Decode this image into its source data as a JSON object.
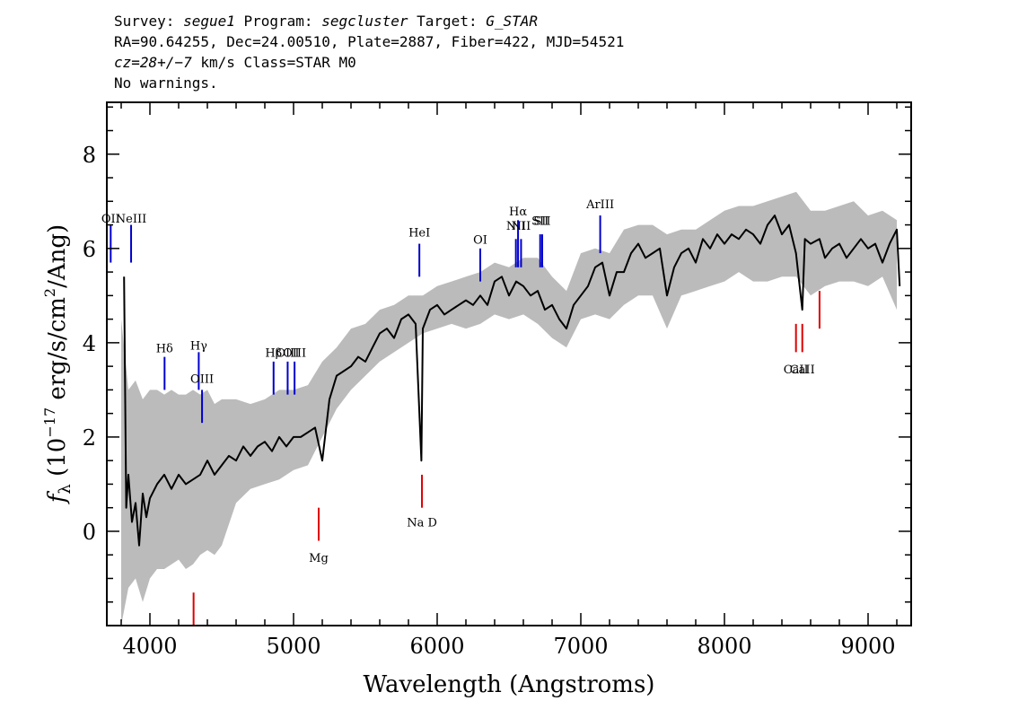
{
  "header": {
    "line1": {
      "survey_label": "Survey: ",
      "survey": "segue1",
      "program_label": " Program: ",
      "program": "segcluster",
      "target_label": " Target: ",
      "target": "G_STAR"
    },
    "line2": "RA=90.64255, Dec=24.00510, Plate=2887, Fiber=422, MJD=54521",
    "line3": {
      "cz": "cz=28+/−7",
      "cz_unit": " km/s Class=STAR M0"
    },
    "line4": "No warnings."
  },
  "chart_data": {
    "type": "line",
    "title": "",
    "xlabel": "Wavelength (Angstroms)",
    "ylabel": "fλ (10^-17 erg/s/cm^2/Ang)",
    "ylabel_parts": {
      "f": "f",
      "sub": "λ",
      "pre": " (10",
      "exp1": "−17",
      "mid": " erg/s/cm",
      "exp2": "2",
      "post": "/Ang)"
    },
    "xlim": [
      3700,
      9300
    ],
    "ylim": [
      -2.0,
      9.1
    ],
    "xticks": [
      4000,
      5000,
      6000,
      7000,
      8000,
      9000
    ],
    "yticks": [
      0,
      2,
      4,
      6,
      8
    ],
    "series": [
      {
        "role": "error-band",
        "color": "#bbbbbb",
        "x": [
          3800,
          3850,
          3900,
          3950,
          4000,
          4050,
          4100,
          4150,
          4200,
          4250,
          4300,
          4350,
          4400,
          4450,
          4500,
          4600,
          4700,
          4800,
          4900,
          5000,
          5100,
          5200,
          5300,
          5400,
          5500,
          5600,
          5700,
          5800,
          5900,
          6000,
          6100,
          6200,
          6300,
          6400,
          6500,
          6600,
          6700,
          6800,
          6900,
          7000,
          7100,
          7200,
          7300,
          7400,
          7500,
          7600,
          7700,
          7800,
          7900,
          8000,
          8100,
          8200,
          8300,
          8400,
          8500,
          8600,
          8700,
          8800,
          8900,
          9000,
          9100,
          9200
        ],
        "upper": [
          4.5,
          3.0,
          3.2,
          2.8,
          3.0,
          3.0,
          2.9,
          3.0,
          2.9,
          2.9,
          3.0,
          2.9,
          3.0,
          2.7,
          2.8,
          2.8,
          2.7,
          2.8,
          3.0,
          3.0,
          3.1,
          3.6,
          3.9,
          4.3,
          4.4,
          4.7,
          4.8,
          5.0,
          5.0,
          5.2,
          5.3,
          5.4,
          5.5,
          5.7,
          5.6,
          5.8,
          5.8,
          5.4,
          5.1,
          5.9,
          6.0,
          5.9,
          6.4,
          6.5,
          6.5,
          6.3,
          6.4,
          6.4,
          6.6,
          6.8,
          6.9,
          6.9,
          7.0,
          7.1,
          7.2,
          6.8,
          6.8,
          6.9,
          7.0,
          6.7,
          6.8,
          6.6
        ],
        "lower": [
          -2.0,
          -1.2,
          -1.0,
          -1.5,
          -1.0,
          -0.8,
          -0.8,
          -0.7,
          -0.6,
          -0.8,
          -0.7,
          -0.5,
          -0.4,
          -0.5,
          -0.3,
          0.6,
          0.9,
          1.0,
          1.1,
          1.3,
          1.4,
          2.0,
          2.6,
          3.0,
          3.3,
          3.6,
          3.8,
          4.0,
          4.2,
          4.3,
          4.4,
          4.3,
          4.4,
          4.6,
          4.5,
          4.6,
          4.4,
          4.1,
          3.9,
          4.5,
          4.6,
          4.5,
          4.8,
          5.0,
          5.0,
          4.3,
          5.0,
          5.1,
          5.2,
          5.3,
          5.5,
          5.3,
          5.3,
          5.4,
          5.4,
          5.0,
          5.2,
          5.3,
          5.3,
          5.2,
          5.4,
          4.7
        ]
      },
      {
        "role": "flux",
        "color": "#000000",
        "x": [
          3820,
          3835,
          3850,
          3875,
          3900,
          3925,
          3950,
          3975,
          4000,
          4050,
          4100,
          4150,
          4200,
          4250,
          4300,
          4350,
          4400,
          4450,
          4500,
          4550,
          4600,
          4650,
          4700,
          4750,
          4800,
          4850,
          4900,
          4950,
          5000,
          5050,
          5100,
          5150,
          5200,
          5250,
          5300,
          5350,
          5400,
          5450,
          5500,
          5550,
          5600,
          5650,
          5700,
          5750,
          5800,
          5850,
          5890,
          5900,
          5950,
          6000,
          6050,
          6100,
          6150,
          6200,
          6250,
          6300,
          6350,
          6400,
          6450,
          6500,
          6550,
          6600,
          6650,
          6700,
          6750,
          6800,
          6850,
          6900,
          6950,
          7000,
          7050,
          7100,
          7150,
          7200,
          7250,
          7300,
          7350,
          7400,
          7450,
          7500,
          7550,
          7600,
          7650,
          7700,
          7750,
          7800,
          7850,
          7900,
          7950,
          8000,
          8050,
          8100,
          8150,
          8200,
          8250,
          8300,
          8350,
          8400,
          8450,
          8498,
          8542,
          8560,
          8600,
          8662,
          8700,
          8750,
          8800,
          8850,
          8900,
          8950,
          9000,
          9050,
          9100,
          9150,
          9200,
          9220
        ],
        "y": [
          5.4,
          0.5,
          1.2,
          0.2,
          0.6,
          -0.3,
          0.8,
          0.3,
          0.7,
          1.0,
          1.2,
          0.9,
          1.2,
          1.0,
          1.1,
          1.2,
          1.5,
          1.2,
          1.4,
          1.6,
          1.5,
          1.8,
          1.6,
          1.8,
          1.9,
          1.7,
          2.0,
          1.8,
          2.0,
          2.0,
          2.1,
          2.2,
          1.5,
          2.8,
          3.3,
          3.4,
          3.5,
          3.7,
          3.6,
          3.9,
          4.2,
          4.3,
          4.1,
          4.5,
          4.6,
          4.4,
          1.5,
          4.3,
          4.7,
          4.8,
          4.6,
          4.7,
          4.8,
          4.9,
          4.8,
          5.0,
          4.8,
          5.3,
          5.4,
          5.0,
          5.3,
          5.2,
          5.0,
          5.1,
          4.7,
          4.8,
          4.5,
          4.3,
          4.8,
          5.0,
          5.2,
          5.6,
          5.7,
          5.0,
          5.5,
          5.5,
          5.9,
          6.1,
          5.8,
          5.9,
          6.0,
          5.0,
          5.6,
          5.9,
          6.0,
          5.7,
          6.2,
          6.0,
          6.3,
          6.1,
          6.3,
          6.2,
          6.4,
          6.3,
          6.1,
          6.5,
          6.7,
          6.3,
          6.5,
          5.9,
          4.7,
          6.2,
          6.1,
          6.2,
          5.8,
          6.0,
          6.1,
          5.8,
          6.0,
          6.2,
          6.0,
          6.1,
          5.7,
          6.1,
          6.4,
          5.2
        ]
      }
    ],
    "emission_lines": [
      {
        "label": "OII",
        "x": 3727,
        "y0": 5.7,
        "y1": 6.5,
        "ly": 6.55,
        "color": "#0000cc"
      },
      {
        "label": "NeIII",
        "x": 3869,
        "y0": 5.7,
        "y1": 6.5,
        "ly": 6.55,
        "color": "#0000cc"
      },
      {
        "label": "Hδ",
        "x": 4102,
        "y0": 3.0,
        "y1": 3.7,
        "ly": 3.8,
        "color": "#0000cc"
      },
      {
        "label": "Hγ",
        "x": 4340,
        "y0": 3.0,
        "y1": 3.8,
        "ly": 3.85,
        "color": "#0000cc"
      },
      {
        "label": "OIII",
        "x": 4363,
        "y0": 2.3,
        "y1": 3.0,
        "ly": 3.15,
        "color": "#0000cc"
      },
      {
        "label": "Hβ",
        "x": 4861,
        "y0": 2.9,
        "y1": 3.6,
        "ly": 3.7,
        "color": "#0000cc"
      },
      {
        "label": "OIII",
        "x": 4959,
        "y0": 2.9,
        "y1": 3.6,
        "ly": 3.7,
        "color": "#0000cc"
      },
      {
        "label": "OIII",
        "x": 5007,
        "y0": 2.9,
        "y1": 3.6,
        "ly": 3.7,
        "color": "#0000cc"
      },
      {
        "label": "HeI",
        "x": 5876,
        "y0": 5.4,
        "y1": 6.1,
        "ly": 6.25,
        "color": "#0000cc"
      },
      {
        "label": "OI",
        "x": 6300,
        "y0": 5.3,
        "y1": 6.0,
        "ly": 6.1,
        "color": "#0000cc"
      },
      {
        "label": "NII",
        "x": 6548,
        "y0": 5.6,
        "y1": 6.2,
        "ly": 6.4,
        "color": "#0000cc"
      },
      {
        "label": "Hα",
        "x": 6563,
        "y0": 5.6,
        "y1": 6.6,
        "ly": 6.7,
        "color": "#0000cc"
      },
      {
        "label": "NII",
        "x": 6584,
        "y0": 5.6,
        "y1": 6.2,
        "ly": 6.4,
        "color": "#0000cc"
      },
      {
        "label": "SII",
        "x": 6717,
        "y0": 5.6,
        "y1": 6.3,
        "ly": 6.5,
        "color": "#0000cc"
      },
      {
        "label": "SII",
        "x": 6731,
        "y0": 5.6,
        "y1": 6.3,
        "ly": 6.5,
        "color": "#0000cc"
      },
      {
        "label": "ArIII",
        "x": 7135,
        "y0": 5.9,
        "y1": 6.7,
        "ly": 6.85,
        "color": "#0000cc"
      }
    ],
    "absorption_lines": [
      {
        "label": "",
        "x": 4304,
        "y0": -2.0,
        "y1": -1.3,
        "color": "#dd0000"
      },
      {
        "label": "Mg",
        "x": 5175,
        "y0": -0.2,
        "y1": 0.5,
        "ly": -0.65,
        "color": "#dd0000"
      },
      {
        "label": "Na D",
        "x": 5894,
        "y0": 0.5,
        "y1": 1.2,
        "ly": 0.1,
        "color": "#dd0000"
      },
      {
        "label": "CaII",
        "x": 8498,
        "y0": 3.8,
        "y1": 4.4,
        "ly": 3.35,
        "color": "#dd0000"
      },
      {
        "label": "CaII",
        "x": 8542,
        "y0": 3.8,
        "y1": 4.4,
        "ly": 3.35,
        "color": "#dd0000"
      },
      {
        "label": "",
        "x": 8662,
        "y0": 4.3,
        "y1": 5.1,
        "color": "#dd0000"
      }
    ]
  }
}
